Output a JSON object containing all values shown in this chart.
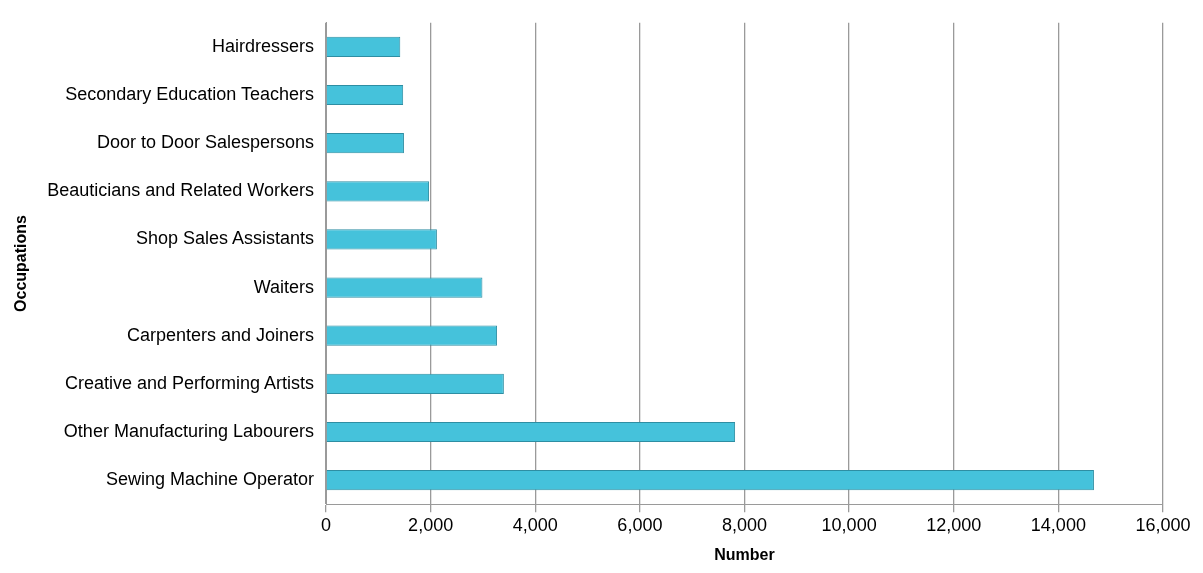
{
  "chart_data": {
    "type": "bar",
    "orientation": "horizontal",
    "xlabel": "Number",
    "ylabel": "Occupations",
    "categories": [
      "Hairdressers",
      "Secondary Education Teachers",
      "Door to Door Salespersons",
      "Beauticians and Related Workers",
      "Shop Sales Assistants",
      "Waiters",
      "Carpenters and Joiners",
      "Creative and Performing Artists",
      "Other Manufacturing Labourers",
      "Sewing Machine Operator"
    ],
    "values": [
      1420,
      1475,
      1490,
      1970,
      2120,
      2990,
      3270,
      3400,
      7820,
      14680
    ],
    "color": "#45c2db",
    "xlim": [
      0,
      16000
    ],
    "xticks": [
      {
        "value": 0,
        "label": "0"
      },
      {
        "value": 2000,
        "label": "2,000"
      },
      {
        "value": 4000,
        "label": "4,000"
      },
      {
        "value": 6000,
        "label": "6,000"
      },
      {
        "value": 8000,
        "label": "8,000"
      },
      {
        "value": 10000,
        "label": "10,000"
      },
      {
        "value": 12000,
        "label": "12,000"
      },
      {
        "value": 14000,
        "label": "14,000"
      },
      {
        "value": 16000,
        "label": "16,000"
      }
    ],
    "grid": "x",
    "legend": false
  }
}
